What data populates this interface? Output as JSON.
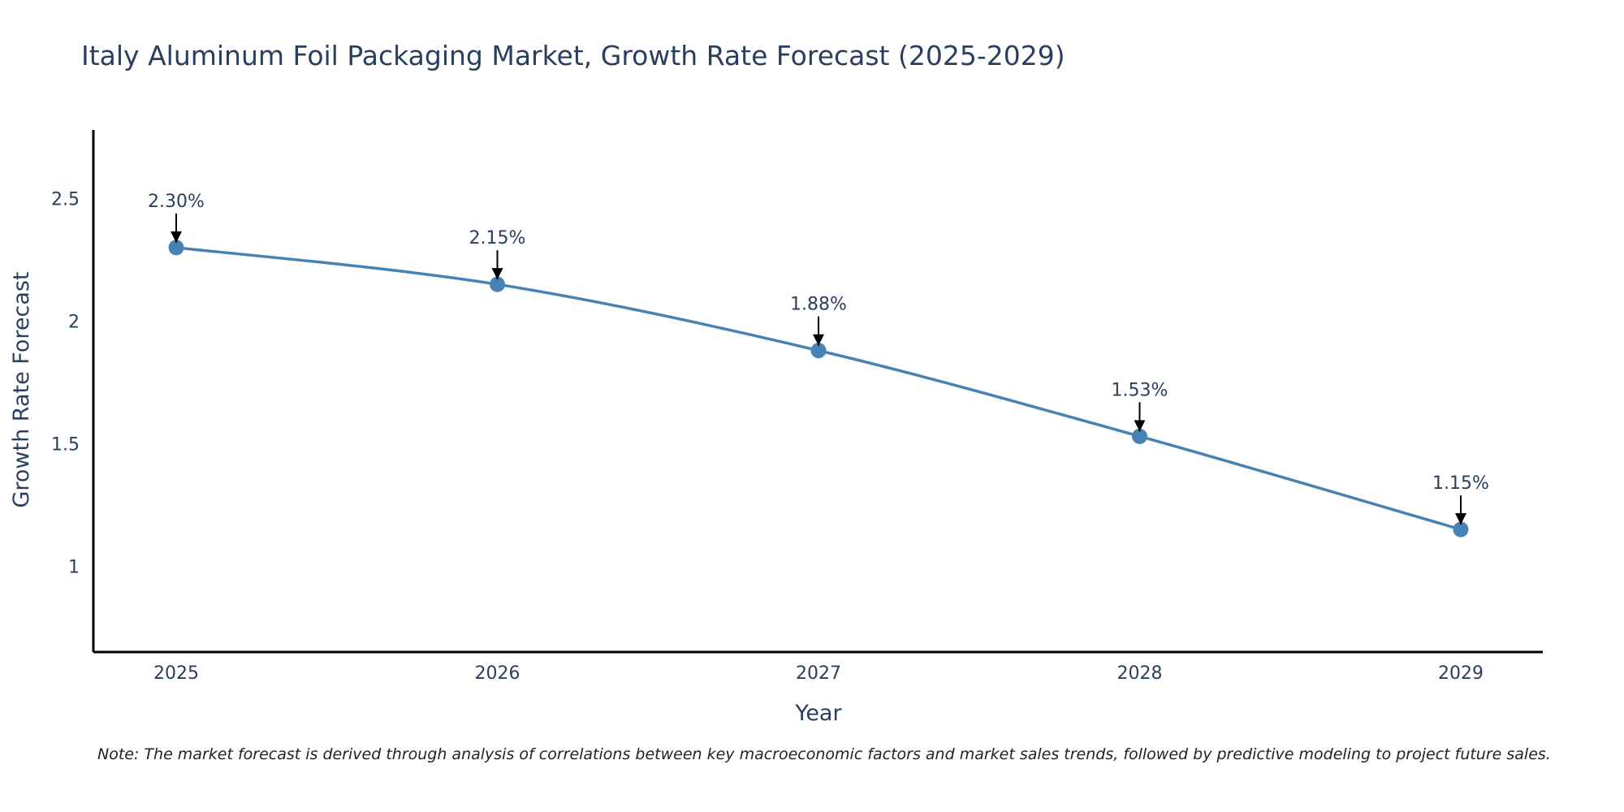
{
  "chart_data": {
    "type": "line",
    "title": "Italy Aluminum Foil Packaging Market, Growth Rate Forecast (2025-2029)",
    "xlabel": "Year",
    "ylabel": "Growth Rate Forecast",
    "categories": [
      "2025",
      "2026",
      "2027",
      "2028",
      "2029"
    ],
    "values": [
      2.3,
      2.15,
      1.88,
      1.53,
      1.15
    ],
    "data_labels": [
      "2.30%",
      "2.15%",
      "1.88%",
      "1.53%",
      "1.15%"
    ],
    "yticks": [
      1,
      1.5,
      2,
      2.5
    ],
    "ytick_labels": [
      "1",
      "1.5",
      "2",
      "2.5"
    ],
    "ylim": [
      0.65,
      2.78
    ],
    "line_color": "#4682b4",
    "grid": false
  },
  "note": "Note: The market forecast is derived through analysis of correlations between key macroeconomic factors and market sales trends, followed by predictive modeling to project future sales."
}
